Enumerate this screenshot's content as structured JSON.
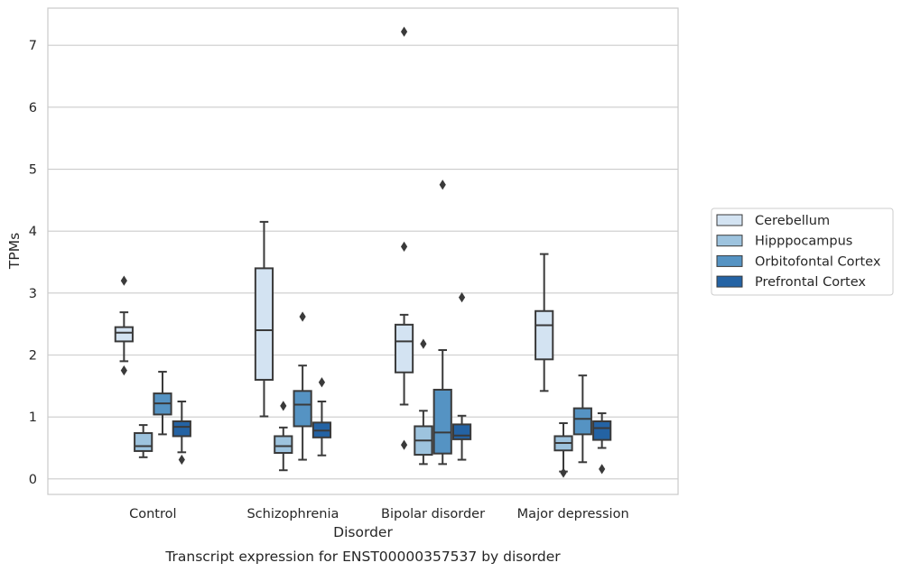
{
  "caption": "Transcript expression for ENST00000357537 by disorder",
  "chart_data": {
    "type": "box",
    "title": "",
    "xlabel": "Disorder",
    "ylabel": "TPMs",
    "ylim": [
      -0.25,
      7.6
    ],
    "yticks": [
      0,
      1,
      2,
      3,
      4,
      5,
      6,
      7
    ],
    "grid": "horizontal",
    "legend_position": "right",
    "categories": [
      "Control",
      "Schizophrenia",
      "Bipolar disorder",
      "Major depression"
    ],
    "series": [
      {
        "name": "Cerebellum",
        "color": "#d3e3f2",
        "boxes": [
          {
            "whislo": 1.9,
            "q1": 2.22,
            "med": 2.36,
            "q3": 2.45,
            "whishi": 2.69,
            "fliers": [
              3.2,
              1.75
            ]
          },
          {
            "whislo": 1.01,
            "q1": 1.6,
            "med": 2.4,
            "q3": 3.4,
            "whishi": 4.15,
            "fliers": []
          },
          {
            "whislo": 1.2,
            "q1": 1.72,
            "med": 2.22,
            "q3": 2.49,
            "whishi": 2.65,
            "fliers": [
              7.22,
              3.75,
              0.55
            ]
          },
          {
            "whislo": 1.42,
            "q1": 1.93,
            "med": 2.48,
            "q3": 2.71,
            "whishi": 3.63,
            "fliers": []
          }
        ]
      },
      {
        "name": "Hipppocampus",
        "color": "#9dc3de",
        "boxes": [
          {
            "whislo": 0.35,
            "q1": 0.45,
            "med": 0.53,
            "q3": 0.74,
            "whishi": 0.87,
            "fliers": []
          },
          {
            "whislo": 0.14,
            "q1": 0.42,
            "med": 0.53,
            "q3": 0.69,
            "whishi": 0.83,
            "fliers": [
              1.18
            ]
          },
          {
            "whislo": 0.24,
            "q1": 0.39,
            "med": 0.62,
            "q3": 0.85,
            "whishi": 1.1,
            "fliers": [
              2.18
            ]
          },
          {
            "whislo": 0.12,
            "q1": 0.46,
            "med": 0.58,
            "q3": 0.69,
            "whishi": 0.9,
            "fliers": [
              0.1
            ]
          }
        ]
      },
      {
        "name": "Orbitofontal Cortex",
        "color": "#5593c3",
        "boxes": [
          {
            "whislo": 0.72,
            "q1": 1.04,
            "med": 1.22,
            "q3": 1.38,
            "whishi": 1.73,
            "fliers": []
          },
          {
            "whislo": 0.31,
            "q1": 0.85,
            "med": 1.2,
            "q3": 1.42,
            "whishi": 1.83,
            "fliers": [
              2.62
            ]
          },
          {
            "whislo": 0.24,
            "q1": 0.41,
            "med": 0.75,
            "q3": 1.44,
            "whishi": 2.08,
            "fliers": [
              4.75
            ]
          },
          {
            "whislo": 0.27,
            "q1": 0.72,
            "med": 0.97,
            "q3": 1.14,
            "whishi": 1.67,
            "fliers": []
          }
        ]
      },
      {
        "name": "Prefrontal Cortex",
        "color": "#2463a4",
        "boxes": [
          {
            "whislo": 0.43,
            "q1": 0.69,
            "med": 0.84,
            "q3": 0.93,
            "whishi": 1.25,
            "fliers": [
              0.31
            ]
          },
          {
            "whislo": 0.38,
            "q1": 0.67,
            "med": 0.78,
            "q3": 0.91,
            "whishi": 1.25,
            "fliers": [
              1.56
            ]
          },
          {
            "whislo": 0.31,
            "q1": 0.64,
            "med": 0.7,
            "q3": 0.88,
            "whishi": 1.02,
            "fliers": [
              2.93
            ]
          },
          {
            "whislo": 0.5,
            "q1": 0.63,
            "med": 0.82,
            "q3": 0.93,
            "whishi": 1.06,
            "fliers": [
              0.16
            ]
          }
        ]
      }
    ]
  }
}
